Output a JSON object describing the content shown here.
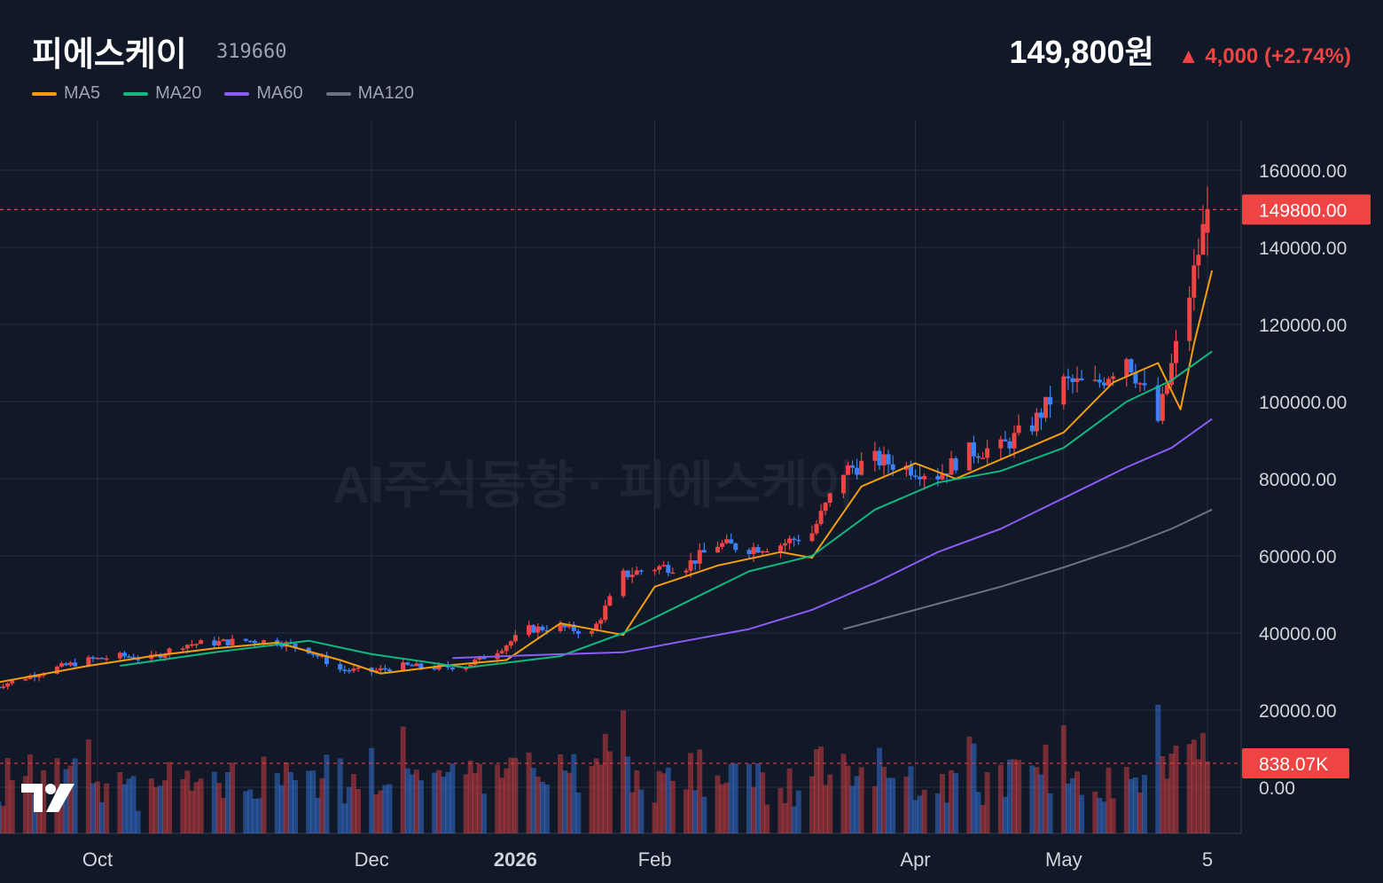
{
  "header": {
    "stock_name": "피에스케이",
    "stock_code": "319660",
    "price": "149,800원",
    "change": "▲ 4,000 (+2.74%)"
  },
  "legend": [
    {
      "label": "MA5",
      "color": "#f59e0b"
    },
    {
      "label": "MA20",
      "color": "#10b981"
    },
    {
      "label": "MA60",
      "color": "#8b5cf6"
    },
    {
      "label": "MA120",
      "color": "#6b7280"
    }
  ],
  "watermark": "AI주식동향 · 피에스케이",
  "colors": {
    "background": "#111827",
    "up": "#ef4444",
    "down": "#3b82f6",
    "grid": "#243044",
    "axis_text": "#9ca3af"
  },
  "chart_data": {
    "type": "candlestick",
    "x_labels": [
      {
        "label": "Oct",
        "date": "2025-10-01"
      },
      {
        "label": "Dec",
        "date": "2025-12-01"
      },
      {
        "label": "2026",
        "date": "2026-01-02",
        "bold": true
      },
      {
        "label": "Feb",
        "date": "2026-02-02"
      },
      {
        "label": "Apr",
        "date": "2026-04-01"
      },
      {
        "label": "May",
        "date": "2026-05-04"
      },
      {
        "label": "5",
        "date": "2026-06-05"
      }
    ],
    "y_ticks": [
      "160000.00",
      "140000.00",
      "120000.00",
      "100000.00",
      "80000.00",
      "60000.00",
      "40000.00",
      "20000.00",
      "0.00"
    ],
    "y_range": [
      -10000,
      172000
    ],
    "current_price_label": "149800.00",
    "current_price": 149800,
    "volume_label": "838.07K",
    "price_closes": [
      {
        "date": "2025-09-08",
        "close": 26000
      },
      {
        "date": "2025-09-15",
        "close": 28500
      },
      {
        "date": "2025-09-22",
        "close": 31000
      },
      {
        "date": "2025-09-29",
        "close": 33000
      },
      {
        "date": "2025-10-06",
        "close": 34000
      },
      {
        "date": "2025-10-13",
        "close": 33500
      },
      {
        "date": "2025-10-20",
        "close": 37000
      },
      {
        "date": "2025-10-27",
        "close": 37500
      },
      {
        "date": "2025-11-03",
        "close": 38000
      },
      {
        "date": "2025-11-10",
        "close": 37800
      },
      {
        "date": "2025-11-17",
        "close": 35500
      },
      {
        "date": "2025-11-24",
        "close": 30500
      },
      {
        "date": "2025-12-01",
        "close": 30000
      },
      {
        "date": "2025-12-08",
        "close": 31500
      },
      {
        "date": "2025-12-15",
        "close": 31000
      },
      {
        "date": "2025-12-22",
        "close": 31500
      },
      {
        "date": "2025-12-29",
        "close": 35500
      },
      {
        "date": "2026-01-05",
        "close": 41000
      },
      {
        "date": "2026-01-12",
        "close": 41500
      },
      {
        "date": "2026-01-19",
        "close": 40000
      },
      {
        "date": "2026-01-26",
        "close": 55000
      },
      {
        "date": "2026-02-02",
        "close": 57000
      },
      {
        "date": "2026-02-09",
        "close": 57500
      },
      {
        "date": "2026-02-16",
        "close": 63000
      },
      {
        "date": "2026-02-23",
        "close": 62000
      },
      {
        "date": "2026-03-02",
        "close": 63000
      },
      {
        "date": "2026-03-09",
        "close": 66000
      },
      {
        "date": "2026-03-16",
        "close": 82000
      },
      {
        "date": "2026-03-23",
        "close": 85000
      },
      {
        "date": "2026-03-30",
        "close": 83000
      },
      {
        "date": "2026-04-06",
        "close": 81000
      },
      {
        "date": "2026-04-13",
        "close": 87000
      },
      {
        "date": "2026-04-20",
        "close": 88000
      },
      {
        "date": "2026-04-27",
        "close": 94000
      },
      {
        "date": "2026-05-04",
        "close": 105000
      },
      {
        "date": "2026-05-11",
        "close": 104000
      },
      {
        "date": "2026-05-18",
        "close": 112000
      },
      {
        "date": "2026-05-25",
        "close": 95000
      },
      {
        "date": "2026-06-01",
        "close": 128000
      },
      {
        "date": "2026-06-05",
        "close": 149800
      }
    ],
    "ma_lines": [
      {
        "name": "MA5",
        "points": [
          {
            "date": "2025-09-08",
            "value": 27000
          },
          {
            "date": "2025-09-29",
            "value": 31500
          },
          {
            "date": "2025-10-13",
            "value": 34000
          },
          {
            "date": "2025-10-27",
            "value": 36000
          },
          {
            "date": "2025-11-10",
            "value": 37500
          },
          {
            "date": "2025-11-24",
            "value": 33000
          },
          {
            "date": "2025-12-03",
            "value": 29500
          },
          {
            "date": "2025-12-17",
            "value": 31500
          },
          {
            "date": "2025-12-31",
            "value": 33000
          },
          {
            "date": "2026-01-12",
            "value": 42500
          },
          {
            "date": "2026-01-26",
            "value": 39500
          },
          {
            "date": "2026-02-02",
            "value": 52000
          },
          {
            "date": "2026-02-16",
            "value": 57500
          },
          {
            "date": "2026-03-02",
            "value": 61000
          },
          {
            "date": "2026-03-09",
            "value": 59500
          },
          {
            "date": "2026-03-20",
            "value": 78000
          },
          {
            "date": "2026-04-01",
            "value": 84000
          },
          {
            "date": "2026-04-10",
            "value": 80000
          },
          {
            "date": "2026-04-24",
            "value": 87000
          },
          {
            "date": "2026-05-04",
            "value": 92000
          },
          {
            "date": "2026-05-15",
            "value": 105000
          },
          {
            "date": "2026-05-25",
            "value": 110000
          },
          {
            "date": "2026-05-30",
            "value": 98000
          },
          {
            "date": "2026-06-02",
            "value": 115000
          },
          {
            "date": "2026-06-06",
            "value": 134000
          }
        ]
      },
      {
        "name": "MA20",
        "points": [
          {
            "date": "2025-10-06",
            "value": 31500
          },
          {
            "date": "2025-10-27",
            "value": 35000
          },
          {
            "date": "2025-11-17",
            "value": 38000
          },
          {
            "date": "2025-12-01",
            "value": 34500
          },
          {
            "date": "2025-12-22",
            "value": 31000
          },
          {
            "date": "2026-01-12",
            "value": 34000
          },
          {
            "date": "2026-01-26",
            "value": 40000
          },
          {
            "date": "2026-02-09",
            "value": 48000
          },
          {
            "date": "2026-02-23",
            "value": 56000
          },
          {
            "date": "2026-03-09",
            "value": 60000
          },
          {
            "date": "2026-03-23",
            "value": 72000
          },
          {
            "date": "2026-04-06",
            "value": 79000
          },
          {
            "date": "2026-04-20",
            "value": 82000
          },
          {
            "date": "2026-05-04",
            "value": 88000
          },
          {
            "date": "2026-05-18",
            "value": 100000
          },
          {
            "date": "2026-05-28",
            "value": 105500
          },
          {
            "date": "2026-06-06",
            "value": 113000
          }
        ]
      },
      {
        "name": "MA60",
        "points": [
          {
            "date": "2025-12-19",
            "value": 33500
          },
          {
            "date": "2026-01-12",
            "value": 34500
          },
          {
            "date": "2026-01-26",
            "value": 35000
          },
          {
            "date": "2026-02-09",
            "value": 38000
          },
          {
            "date": "2026-02-23",
            "value": 41000
          },
          {
            "date": "2026-03-09",
            "value": 46000
          },
          {
            "date": "2026-03-23",
            "value": 53000
          },
          {
            "date": "2026-04-06",
            "value": 61000
          },
          {
            "date": "2026-04-20",
            "value": 67000
          },
          {
            "date": "2026-05-04",
            "value": 75000
          },
          {
            "date": "2026-05-18",
            "value": 83000
          },
          {
            "date": "2026-05-28",
            "value": 88000
          },
          {
            "date": "2026-06-06",
            "value": 95500
          }
        ]
      },
      {
        "name": "MA120",
        "points": [
          {
            "date": "2026-03-16",
            "value": 41000
          },
          {
            "date": "2026-04-01",
            "value": 46000
          },
          {
            "date": "2026-04-20",
            "value": 52000
          },
          {
            "date": "2026-05-04",
            "value": 57000
          },
          {
            "date": "2026-05-18",
            "value": 62500
          },
          {
            "date": "2026-05-28",
            "value": 67000
          },
          {
            "date": "2026-06-06",
            "value": 72000
          }
        ]
      }
    ]
  }
}
